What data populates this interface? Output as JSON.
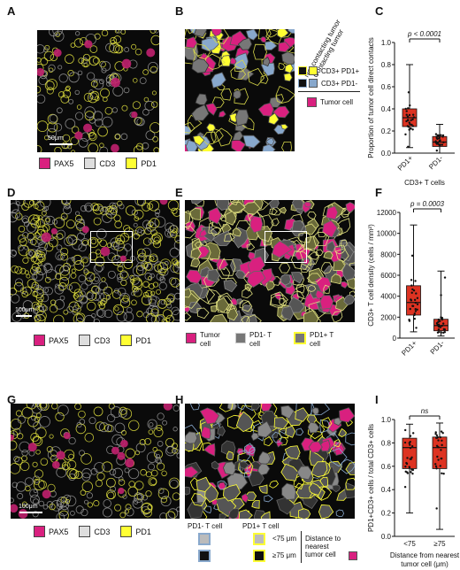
{
  "panels": {
    "A": {
      "label": "A",
      "scale": "50μm",
      "legend": [
        "PAX5",
        "CD3",
        "PD1"
      ]
    },
    "B": {
      "label": "B",
      "legend_header_1": "Not contacting tumor",
      "legend_header_2": "Contacting tumor",
      "legend_items": [
        "CD3+ PD1+",
        "CD3+ PD1-",
        "Tumor cell"
      ]
    },
    "C": {
      "label": "C",
      "pvalue": "p < 0.0001",
      "xlabel": "CD3+ T cells"
    },
    "D": {
      "label": "D",
      "scale": "100μm",
      "legend": [
        "PAX5",
        "CD3",
        "PD1"
      ]
    },
    "E": {
      "label": "E",
      "legend": [
        "Tumor cell",
        "PD1- T cell",
        "PD1+ T cell"
      ]
    },
    "F": {
      "label": "F",
      "pvalue": "p = 0.0003"
    },
    "G": {
      "label": "G",
      "scale": "100μm",
      "legend": [
        "PAX5",
        "CD3",
        "PD1"
      ]
    },
    "H": {
      "label": "H",
      "col1": "PD1- T cell",
      "col2": "PD1+ T cell",
      "row1": "<75 μm",
      "row2": "≥75 μm",
      "dist_label_1": "Distance to",
      "dist_label_2": "nearest",
      "dist_label_3": "tumor cell"
    },
    "I": {
      "label": "I",
      "pvalue": "ns"
    }
  },
  "colors": {
    "pax5": "#d9207f",
    "cd3": "#dedede",
    "pd1": "#ffff33",
    "box": "#dd3322",
    "pd1neg": "#88a8cc"
  },
  "chart_data": [
    {
      "type": "box",
      "panel": "C",
      "categories": [
        "PD1+",
        "PD1-"
      ],
      "ylabel": "Proportion of tumor cell direct contacts",
      "xlabel": "CD3+ T cells",
      "ylim": [
        0,
        1.0
      ],
      "yticks": [
        0.0,
        0.2,
        0.4,
        0.6,
        0.8,
        1.0
      ],
      "boxes": [
        {
          "name": "PD1+",
          "min": 0.05,
          "q1": 0.24,
          "median": 0.32,
          "q3": 0.4,
          "max": 0.8
        },
        {
          "name": "PD1-",
          "min": 0.0,
          "q1": 0.06,
          "median": 0.1,
          "q3": 0.15,
          "max": 0.26
        }
      ],
      "annotation": "p < 0.0001"
    },
    {
      "type": "box",
      "panel": "F",
      "categories": [
        "PD1+",
        "PD1-"
      ],
      "ylabel": "CD3+ T cell density (cells / mm²)",
      "ylim": [
        0,
        12000
      ],
      "yticks": [
        0,
        2000,
        4000,
        6000,
        8000,
        10000,
        12000
      ],
      "boxes": [
        {
          "name": "PD1+",
          "min": 600,
          "q1": 2200,
          "median": 3400,
          "q3": 5000,
          "max": 10800
        },
        {
          "name": "PD1-",
          "min": 200,
          "q1": 700,
          "median": 1200,
          "q3": 1800,
          "max": 6400
        }
      ],
      "annotation": "p = 0.0003"
    },
    {
      "type": "box",
      "panel": "I",
      "categories": [
        "<75",
        "≥75"
      ],
      "ylabel": "PD1+CD3+ cells / total CD3+ cells",
      "xlabel": "Distance from nearest tumor cell (μm)",
      "ylim": [
        0,
        1.0
      ],
      "yticks": [
        0.0,
        0.2,
        0.4,
        0.6,
        0.8,
        1.0
      ],
      "boxes": [
        {
          "name": "<75",
          "min": 0.2,
          "q1": 0.58,
          "median": 0.76,
          "q3": 0.84,
          "max": 0.96
        },
        {
          "name": "≥75",
          "min": 0.06,
          "q1": 0.58,
          "median": 0.76,
          "q3": 0.85,
          "max": 0.97
        }
      ],
      "annotation": "ns"
    }
  ]
}
